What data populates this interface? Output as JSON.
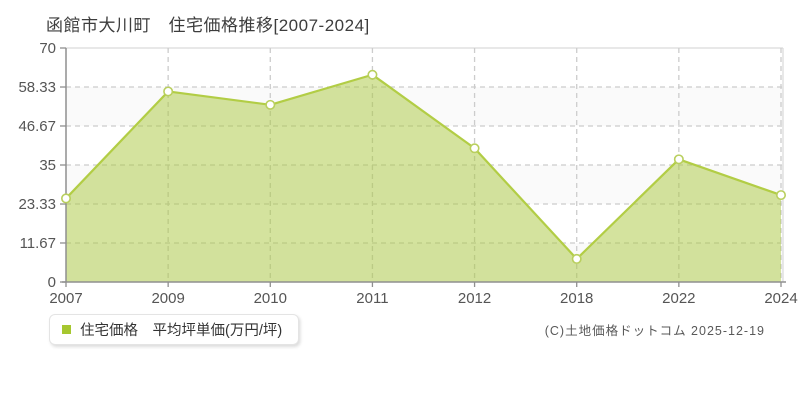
{
  "title": "函館市大川町　住宅価格推移[2007-2024]",
  "legend": {
    "label": "住宅価格　平均坪単価(万円/坪)",
    "marker_color": "#a6c72f"
  },
  "footer": {
    "credit": "(C)土地価格ドットコム 2025-12-19"
  },
  "chart_data": {
    "type": "area",
    "title": "函館市大川町 住宅価格推移[2007-2024]",
    "categories": [
      "2007",
      "2009",
      "2010",
      "2011",
      "2012",
      "2018",
      "2022",
      "2024"
    ],
    "series": [
      {
        "name": "住宅価格 平均坪単価(万円/坪)",
        "values": [
          25,
          57,
          53,
          62,
          40,
          6.9,
          36.7,
          26
        ]
      }
    ],
    "xlabel": "",
    "ylabel": "万円/坪",
    "ylim": [
      0,
      70
    ],
    "yticks": [
      0,
      11.67,
      23.33,
      35,
      46.67,
      58.33,
      70
    ],
    "ytick_labels": [
      "0",
      "11.67",
      "23.33",
      "35",
      "46.67",
      "58.33",
      "70"
    ],
    "grid": "dashed",
    "legend_position": "bottom-left",
    "colors": {
      "area_fill": "rgba(169,200,62,0.5)",
      "line": "#b2cd45",
      "marker_fill": "#ffffff",
      "marker_stroke": "#b9cf5e",
      "grid": "#cccccc",
      "axis": "#8f8f8f",
      "frame": "#d9d9d9",
      "band": "#fafafa",
      "tick_text": "#555555"
    }
  }
}
